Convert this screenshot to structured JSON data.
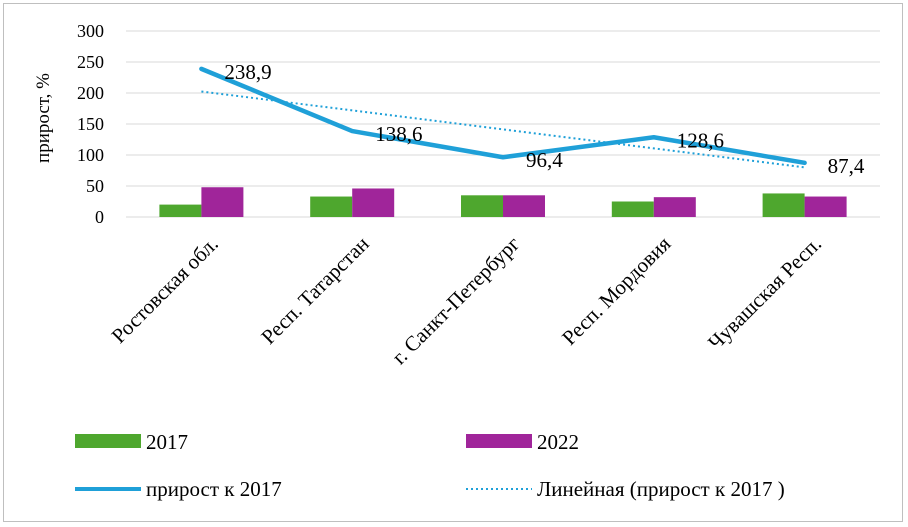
{
  "chart_data": {
    "type": "bar+line",
    "categories": [
      "Ростовская обл.",
      "Респ. Татарстан",
      "г. Санкт-Петербург",
      "Респ. Мордовия",
      "Чувашская Респ."
    ],
    "series": [
      {
        "name": "2017",
        "kind": "bar",
        "color": "#4ea72e",
        "values": [
          20,
          33,
          35,
          25,
          38
        ]
      },
      {
        "name": "2022",
        "kind": "bar",
        "color": "#a0259a",
        "values": [
          48,
          46,
          35,
          32,
          33
        ]
      },
      {
        "name": "прирост к 2017",
        "kind": "line",
        "color": "#1fa0d8",
        "values": [
          238.9,
          138.6,
          96.4,
          128.6,
          87.4
        ]
      },
      {
        "name": "Линейная (прирост к 2017 )",
        "kind": "trendline",
        "color": "#1fa0d8",
        "values": [
          202.5,
          171.9,
          141.3,
          110.7,
          80.1
        ]
      }
    ],
    "data_labels": [
      "238,9",
      "138,6",
      "96,4",
      "128,6",
      "87,4"
    ],
    "ylabel": "прирост, %",
    "ylim": [
      0,
      300
    ],
    "yticks": [
      "0",
      "50",
      "100",
      "150",
      "200",
      "250",
      "300"
    ],
    "grid": true,
    "legend": "bottom"
  }
}
